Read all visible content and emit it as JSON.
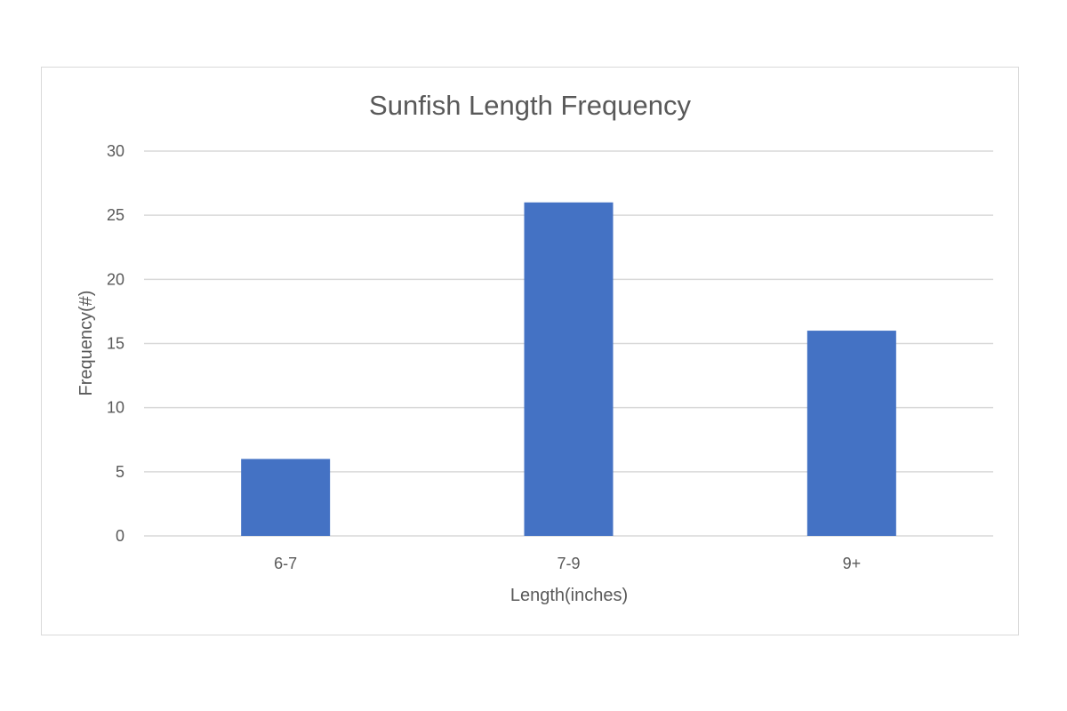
{
  "chart_data": {
    "type": "bar",
    "title": "Sunfish Length Frequency",
    "xlabel": "Length(inches)",
    "ylabel": "Frequency(#)",
    "categories": [
      "6-7",
      "7-9",
      "9+"
    ],
    "values": [
      6,
      26,
      16
    ],
    "ylim": [
      0,
      30
    ],
    "yticks": [
      0,
      5,
      10,
      15,
      20,
      25,
      30
    ],
    "grid": true,
    "legend": "none",
    "colors": {
      "bar": "#4472c4",
      "grid": "#d9d9d9",
      "text": "#595959"
    }
  }
}
